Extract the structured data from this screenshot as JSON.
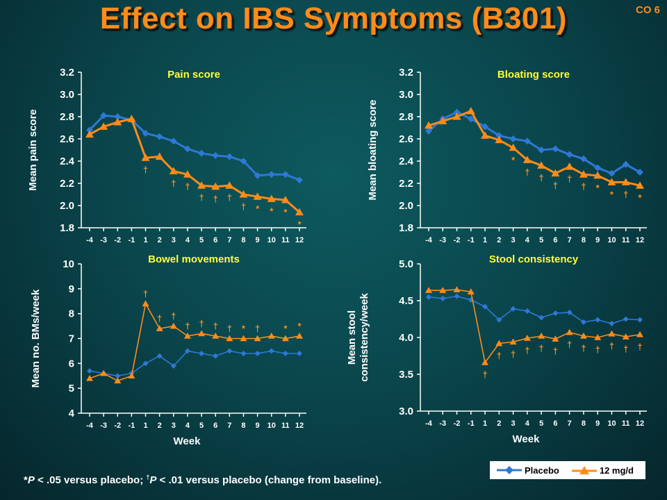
{
  "slide": {
    "title": "Effect on IBS Symptoms (B301)",
    "code": "CO 6",
    "footnote": {
      "star_sym": "*",
      "p1": "P",
      "t1": " < .05 versus placebo; ",
      "dagger_sym": "†",
      "p2": "P",
      "t2": " < .01 versus placebo (change from baseline)."
    }
  },
  "colors": {
    "placebo": "#2e78d6",
    "treatment": "#ff8c1a",
    "axis": "#ffffff",
    "panel_title": "#ffff33"
  },
  "legend": [
    {
      "label": "Placebo",
      "marker": "diamond",
      "color": "#2e78d6"
    },
    {
      "label": "12 mg/d",
      "marker": "triangle",
      "color": "#ff8c1a"
    }
  ],
  "chart_data": [
    {
      "type": "line",
      "title": "Pain score",
      "ylabel": "Mean pain score",
      "xlabel": "",
      "ylim": [
        1.8,
        3.2
      ],
      "yticks": [
        "1.8",
        "2.0",
        "2.2",
        "2.4",
        "2.6",
        "2.8",
        "3.0",
        "3.2"
      ],
      "x": [
        "-4",
        "-3",
        "-2",
        "-1",
        "1",
        "2",
        "3",
        "4",
        "5",
        "6",
        "7",
        "8",
        "9",
        "10",
        "11",
        "12"
      ],
      "series": [
        {
          "name": "Placebo",
          "values": [
            2.68,
            2.81,
            2.8,
            2.77,
            2.65,
            2.62,
            2.58,
            2.51,
            2.47,
            2.45,
            2.44,
            2.4,
            2.27,
            2.28,
            2.28,
            2.23
          ]
        },
        {
          "name": "12 mg/d",
          "values": [
            2.64,
            2.71,
            2.75,
            2.78,
            2.43,
            2.44,
            2.31,
            2.28,
            2.18,
            2.17,
            2.18,
            2.1,
            2.08,
            2.06,
            2.05,
            1.94
          ]
        }
      ],
      "significance": [
        "",
        "",
        "",
        "",
        "†",
        "",
        "†",
        "†",
        "†",
        "†",
        "†",
        "†",
        "*",
        "*",
        "*",
        "*"
      ]
    },
    {
      "type": "line",
      "title": "Bloating score",
      "ylabel": "Mean bloating score",
      "xlabel": "",
      "ylim": [
        1.8,
        3.2
      ],
      "yticks": [
        "1.8",
        "2.0",
        "2.2",
        "2.4",
        "2.6",
        "2.8",
        "3.0",
        "3.2"
      ],
      "x": [
        "-4",
        "-3",
        "-2",
        "-1",
        "1",
        "2",
        "3",
        "4",
        "5",
        "6",
        "7",
        "8",
        "9",
        "10",
        "11",
        "12"
      ],
      "series": [
        {
          "name": "Placebo",
          "values": [
            2.67,
            2.78,
            2.84,
            2.78,
            2.71,
            2.63,
            2.6,
            2.58,
            2.5,
            2.51,
            2.46,
            2.42,
            2.34,
            2.29,
            2.37,
            2.3
          ]
        },
        {
          "name": "12 mg/d",
          "values": [
            2.72,
            2.76,
            2.8,
            2.85,
            2.63,
            2.59,
            2.52,
            2.41,
            2.36,
            2.29,
            2.35,
            2.28,
            2.27,
            2.21,
            2.21,
            2.18
          ]
        }
      ],
      "significance": [
        "",
        "",
        "",
        "",
        "",
        "",
        "*",
        "†",
        "†",
        "†",
        "†",
        "†",
        "*",
        "*",
        "†",
        "*"
      ]
    },
    {
      "type": "line",
      "title": "Bowel movements",
      "ylabel": "Mean no. BMs/week",
      "xlabel": "Week",
      "ylim": [
        4,
        10
      ],
      "yticks": [
        "4",
        "5",
        "6",
        "7",
        "8",
        "9",
        "10"
      ],
      "x": [
        "-4",
        "-3",
        "-2",
        "-1",
        "1",
        "2",
        "3",
        "4",
        "5",
        "6",
        "7",
        "8",
        "9",
        "10",
        "11",
        "12"
      ],
      "series": [
        {
          "name": "Placebo",
          "values": [
            5.7,
            5.6,
            5.5,
            5.6,
            6.0,
            6.3,
            5.9,
            6.5,
            6.4,
            6.3,
            6.5,
            6.4,
            6.4,
            6.5,
            6.4,
            6.4
          ]
        },
        {
          "name": "12 mg/d",
          "values": [
            5.4,
            5.6,
            5.3,
            5.5,
            8.4,
            7.4,
            7.5,
            7.1,
            7.2,
            7.1,
            7.0,
            7.0,
            7.0,
            7.1,
            7.0,
            7.1
          ]
        }
      ],
      "significance": [
        "",
        "",
        "",
        "",
        "†",
        "†",
        "†",
        "†",
        "†",
        "†",
        "†",
        "*",
        "†",
        "",
        "*",
        "*"
      ]
    },
    {
      "type": "line",
      "title": "Stool consistency",
      "ylabel": "Mean stool consistency/week",
      "ylabel_lines": [
        "Mean stool",
        "consistency/week"
      ],
      "xlabel": "Week",
      "ylim": [
        3.0,
        5.0
      ],
      "yticks": [
        "3.0",
        "3.5",
        "4.0",
        "4.5",
        "5.0"
      ],
      "x": [
        "-4",
        "-3",
        "-2",
        "-1",
        "1",
        "2",
        "3",
        "4",
        "5",
        "6",
        "7",
        "8",
        "9",
        "10",
        "11",
        "12"
      ],
      "series": [
        {
          "name": "Placebo",
          "values": [
            4.55,
            4.53,
            4.56,
            4.51,
            4.42,
            4.24,
            4.39,
            4.36,
            4.27,
            4.33,
            4.34,
            4.21,
            4.24,
            4.19,
            4.25,
            4.24
          ]
        },
        {
          "name": "12 mg/d",
          "values": [
            4.64,
            4.64,
            4.65,
            4.62,
            3.66,
            3.92,
            3.94,
            3.99,
            4.02,
            3.98,
            4.07,
            4.02,
            4.0,
            4.05,
            4.01,
            4.04
          ]
        }
      ],
      "significance": [
        "",
        "",
        "",
        "",
        "†",
        "†",
        "†",
        "†",
        "†",
        "†",
        "†",
        "†",
        "†",
        "†",
        "†",
        "†"
      ]
    }
  ]
}
